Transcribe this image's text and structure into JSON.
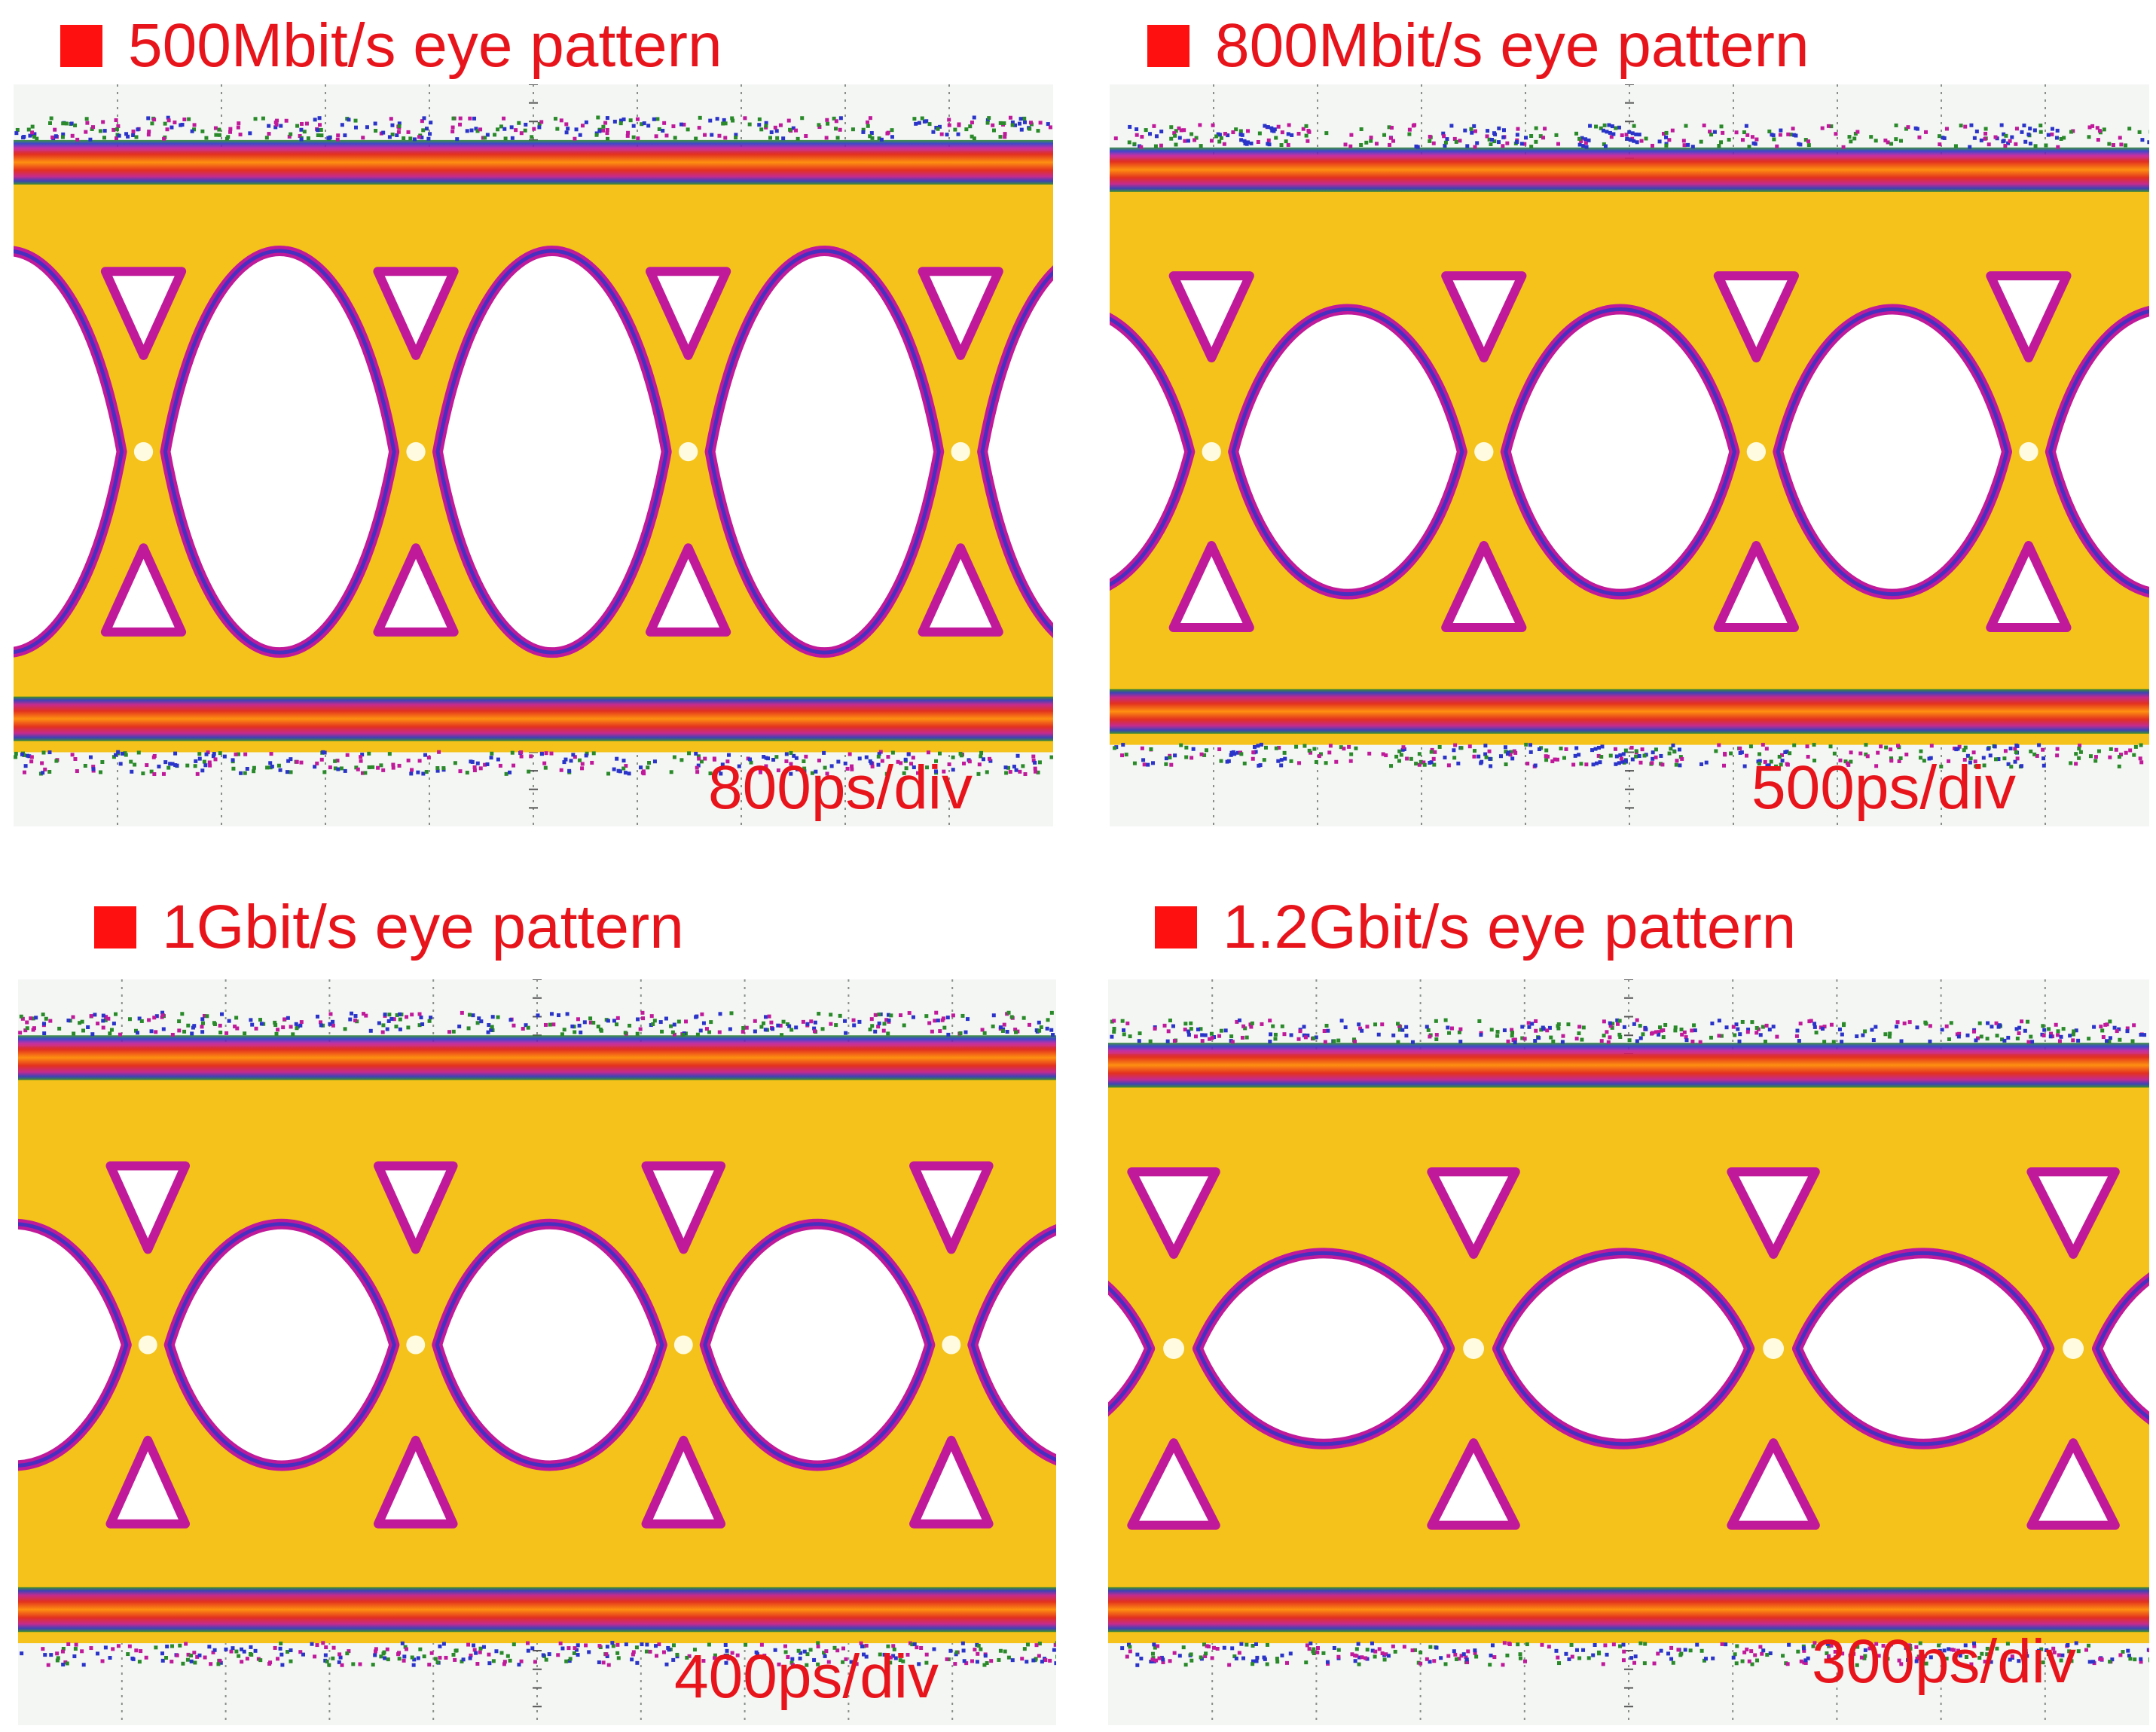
{
  "figure": {
    "description_colors": {
      "accent": "#ff1010",
      "label": "#e8141b",
      "plot_background": "#f4f6f4",
      "grid": "#8a8f8a"
    }
  },
  "chart_data": [
    {
      "type": "heatmap",
      "title": "500Mbit/s eye pattern",
      "bullet_icon": "red-square-icon",
      "bit_rate_mbps": 500,
      "time_per_div_ps": 800,
      "timebase_label": "800ps/div",
      "grid": true,
      "grid_divisions": {
        "horizontal": 10,
        "vertical": 8
      },
      "eye_crossings_visible": 4
    },
    {
      "type": "heatmap",
      "title": "800Mbit/s eye pattern",
      "bullet_icon": "red-square-icon",
      "bit_rate_mbps": 800,
      "time_per_div_ps": 500,
      "timebase_label": "500ps/div",
      "grid": true,
      "grid_divisions": {
        "horizontal": 10,
        "vertical": 8
      },
      "eye_crossings_visible": 4
    },
    {
      "type": "heatmap",
      "title": "1Gbit/s eye pattern",
      "bullet_icon": "red-square-icon",
      "bit_rate_mbps": 1000,
      "time_per_div_ps": 400,
      "timebase_label": "400ps/div",
      "grid": true,
      "grid_divisions": {
        "horizontal": 10,
        "vertical": 8
      },
      "eye_crossings_visible": 4
    },
    {
      "type": "heatmap",
      "title": "1.2Gbit/s eye pattern",
      "bullet_icon": "red-square-icon",
      "bit_rate_mbps": 1200,
      "time_per_div_ps": 300,
      "timebase_label": "300ps/div",
      "grid": true,
      "grid_divisions": {
        "horizontal": 10,
        "vertical": 8
      },
      "eye_crossings_visible": 4
    }
  ]
}
